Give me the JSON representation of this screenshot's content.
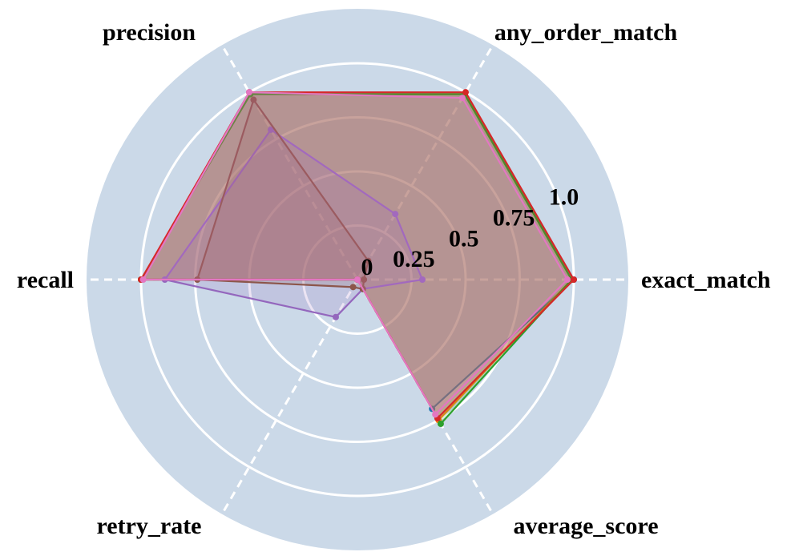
{
  "chart_data": {
    "type": "radar",
    "axes": [
      "exact_match",
      "any_order_match",
      "precision",
      "recall",
      "retry_rate",
      "average_score"
    ],
    "rlim": [
      0,
      1.0
    ],
    "r_ticks": [
      {
        "value": 0,
        "label": "0"
      },
      {
        "value": 0.25,
        "label": "0.25"
      },
      {
        "value": 0.5,
        "label": "0.5"
      },
      {
        "value": 0.75,
        "label": "0.75"
      },
      {
        "value": 1.0,
        "label": "1.0"
      }
    ],
    "grid": true,
    "legend": "none",
    "series": [
      {
        "color": "#1f77b4",
        "values": [
          1.0,
          0.99,
          0.99,
          1.0,
          0.0,
          0.69
        ]
      },
      {
        "color": "#ff7f0e",
        "values": [
          0.99,
          0.99,
          0.99,
          1.0,
          0.0,
          0.75
        ]
      },
      {
        "color": "#2ca02c",
        "values": [
          0.99,
          0.99,
          0.99,
          1.0,
          0.0,
          0.77
        ]
      },
      {
        "color": "#d62728",
        "values": [
          1.0,
          1.0,
          1.0,
          1.0,
          0.0,
          0.74
        ]
      },
      {
        "color": "#9467bd",
        "values": [
          0.3,
          0.35,
          0.8,
          0.89,
          0.2,
          0.05
        ]
      },
      {
        "color": "#8c564b",
        "values": [
          0.03,
          0.1,
          0.96,
          0.74,
          0.04,
          0.05
        ]
      },
      {
        "color": "#e377c2",
        "values": [
          0.97,
          0.97,
          1.0,
          0.99,
          0.0,
          0.72
        ]
      }
    ]
  }
}
